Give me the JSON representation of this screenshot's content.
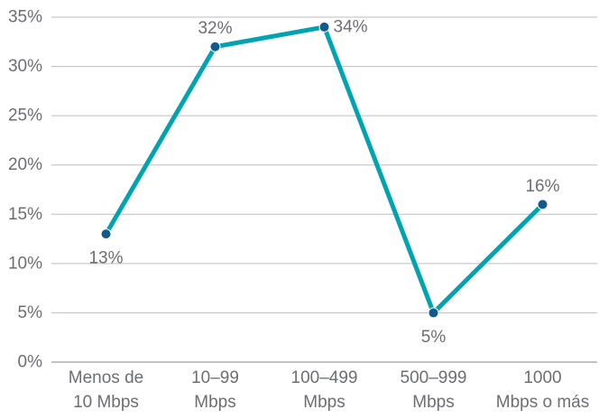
{
  "chart_data": {
    "type": "line",
    "title": "",
    "xlabel": "",
    "ylabel": "",
    "categories": [
      [
        "Menos de",
        "10 Mbps"
      ],
      [
        "10–99",
        "Mbps"
      ],
      [
        "100–499",
        "Mbps"
      ],
      [
        "500–999",
        "Mbps"
      ],
      [
        "1000",
        "Mbps o más"
      ]
    ],
    "series": [
      {
        "values": [
          13,
          32,
          34,
          5,
          16
        ],
        "labels": [
          "13%",
          "32%",
          "34%",
          "5%",
          "16%"
        ],
        "label_side": [
          "below",
          "above",
          "right",
          "below",
          "above"
        ],
        "color": "#00a3b0",
        "marker_color": "#0f5b8c"
      }
    ],
    "ylim": [
      0,
      35
    ],
    "yticks": [
      0,
      5,
      10,
      15,
      20,
      25,
      30,
      35
    ],
    "ytick_labels": [
      "0%",
      "5%",
      "10%",
      "15%",
      "20%",
      "25%",
      "30%",
      "35%"
    ],
    "grid": true,
    "legend": "none"
  }
}
